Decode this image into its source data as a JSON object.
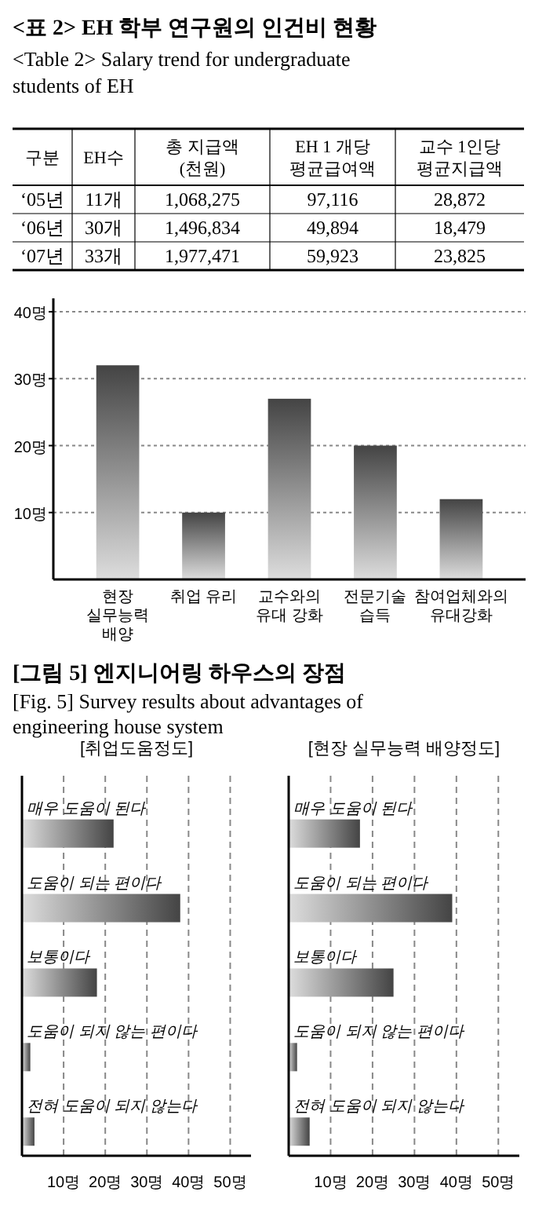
{
  "chart_data": [
    {
      "type": "other",
      "title": "<표 2> EH 학부 연구원의 인건비 현황",
      "subtitle": "<Table 2> Salary trend for undergraduate students of EH",
      "ylabel": "구분",
      "categories": [
        "EH수",
        "총 지급액\n(천원)",
        "EH 1 개당\n평균급여액",
        "교수 1인당\n평균지급액"
      ],
      "y_categories": [
        "‘05년",
        "‘06년",
        "‘07년"
      ],
      "cell_labels": [
        [
          "11개",
          "1,068,275",
          "97,116",
          "28,872"
        ],
        [
          "30개",
          "1,496,834",
          "49,894",
          "18,479"
        ],
        [
          "33개",
          "1,977,471",
          "59,923",
          "23,825"
        ]
      ]
    },
    {
      "type": "bar",
      "title": "[그림 5] 엔지니어링 하우스의 장점",
      "subtitle": "[Fig. 5] Survey results about advantages of engineering house system",
      "categories": [
        "현장 실무능력 배양",
        "취업 유리",
        "교수와의 유대 강화",
        "전문기술 습득",
        "참여업체와의 유대강화"
      ],
      "values": [
        32,
        10,
        27,
        20,
        12
      ],
      "color": "#444444",
      "ylim": [
        0,
        42
      ],
      "yticks": [
        {
          "value": 10,
          "label": "10명"
        },
        {
          "value": 20,
          "label": "20명"
        },
        {
          "value": 30,
          "label": "30명"
        },
        {
          "value": 40,
          "label": "40명"
        }
      ],
      "grid": "y"
    },
    {
      "type": "bar",
      "orientation": "horizontal",
      "title": "[취업도움정도]",
      "categories": [
        "매우 도움이 된다",
        "도움이 되는 편이다",
        "보통이다",
        "도움이 되지 않는 편이다",
        "전혀 도움이 되지 않는다"
      ],
      "values": [
        22,
        38,
        18,
        2,
        3
      ],
      "color": "#444444",
      "xlim": [
        0,
        55
      ],
      "xticks": [
        {
          "value": 10,
          "label": "10명"
        },
        {
          "value": 20,
          "label": "20명"
        },
        {
          "value": 30,
          "label": "30명"
        },
        {
          "value": 40,
          "label": "40명"
        },
        {
          "value": 50,
          "label": "50명"
        }
      ],
      "grid": "x"
    },
    {
      "type": "bar",
      "orientation": "horizontal",
      "title": "[현장 실무능력 배양정도]",
      "categories": [
        "매우 도움이 된다",
        "도움이 되는 편이다",
        "보통이다",
        "도움이 되지 않는 편이다",
        "전혀 도움이 되지 않는다"
      ],
      "values": [
        17,
        39,
        25,
        2,
        5
      ],
      "color": "#444444",
      "xlim": [
        0,
        55
      ],
      "xticks": [
        {
          "value": 10,
          "label": "10명"
        },
        {
          "value": 20,
          "label": "20명"
        },
        {
          "value": 30,
          "label": "30명"
        },
        {
          "value": 40,
          "label": "40명"
        },
        {
          "value": 50,
          "label": "50명"
        }
      ],
      "grid": "x"
    }
  ]
}
